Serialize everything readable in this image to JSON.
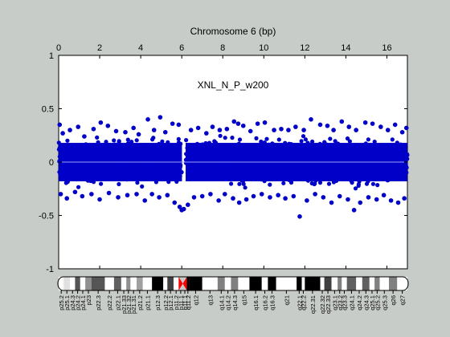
{
  "window_background": "#c8ccc8",
  "chart_data": {
    "type": "scatter",
    "title": "Chromosome 6 (bp)",
    "annotation": "XNL_N_P_w200",
    "xlim": [
      0,
      17
    ],
    "ylim": [
      -1,
      1
    ],
    "x_ticks": [
      0,
      2,
      4,
      6,
      8,
      10,
      12,
      14,
      16
    ],
    "y_ticks": [
      1,
      0.5,
      0,
      -0.5,
      -1
    ],
    "point_color": "#0000c8",
    "zero_line_color": "#a0a0ff",
    "grid": false,
    "bulk_band": {
      "x_range": [
        0,
        17
      ],
      "y_range": [
        -0.18,
        0.18
      ],
      "gap_at_x": 6.05,
      "note": "dense continuous band of points between about -0.18 and 0.18 except near the centromere"
    },
    "series": [
      {
        "x": [
          0.05,
          0.2,
          0.55,
          0.95,
          1.25,
          1.7,
          2.05,
          2.4,
          2.8,
          3.25,
          3.65,
          3.9,
          4.35,
          4.65,
          4.95,
          5.2,
          5.55,
          5.85,
          6.45,
          6.8,
          7.2,
          7.5,
          7.85,
          8.2,
          8.55,
          8.75,
          9.0,
          9.35,
          9.7,
          10.05,
          10.5,
          10.85,
          11.2,
          11.55,
          11.95,
          12.3,
          12.75,
          13.1,
          13.4,
          13.8,
          14.15,
          14.5,
          14.95,
          15.3,
          15.7,
          16.05,
          16.4,
          16.75,
          16.95
        ],
        "y": [
          0.35,
          0.27,
          0.3,
          0.33,
          0.24,
          0.31,
          0.37,
          0.34,
          0.29,
          0.28,
          0.32,
          0.26,
          0.4,
          0.3,
          0.42,
          0.28,
          0.36,
          0.35,
          0.3,
          0.32,
          0.27,
          0.33,
          0.3,
          0.31,
          0.38,
          0.36,
          0.34,
          0.29,
          0.36,
          0.37,
          0.3,
          0.31,
          0.3,
          0.33,
          0.3,
          0.4,
          0.35,
          0.34,
          0.3,
          0.38,
          0.33,
          0.3,
          0.37,
          0.36,
          0.33,
          0.3,
          0.35,
          0.28,
          0.32
        ]
      },
      {
        "x": [
          0.1,
          0.4,
          0.8,
          1.15,
          1.6,
          2.0,
          2.45,
          2.9,
          3.35,
          3.8,
          4.2,
          4.55,
          4.9,
          5.3,
          5.65,
          5.9,
          6.0,
          6.1,
          6.3,
          6.6,
          7.0,
          7.4,
          7.8,
          8.1,
          8.5,
          8.8,
          9.15,
          9.5,
          9.9,
          10.3,
          10.7,
          11.05,
          11.45,
          11.75,
          12.1,
          12.5,
          12.9,
          13.3,
          13.7,
          14.1,
          14.4,
          14.7,
          15.1,
          15.5,
          15.85,
          16.2,
          16.55,
          16.85
        ],
        "y": [
          -0.3,
          -0.34,
          -0.28,
          -0.32,
          -0.3,
          -0.35,
          -0.29,
          -0.33,
          -0.31,
          -0.3,
          -0.36,
          -0.3,
          -0.33,
          -0.31,
          -0.38,
          -0.42,
          -0.45,
          -0.44,
          -0.4,
          -0.33,
          -0.32,
          -0.3,
          -0.36,
          -0.3,
          -0.34,
          -0.38,
          -0.35,
          -0.32,
          -0.3,
          -0.33,
          -0.31,
          -0.34,
          -0.32,
          -0.51,
          -0.36,
          -0.3,
          -0.33,
          -0.38,
          -0.32,
          -0.35,
          -0.45,
          -0.38,
          -0.33,
          -0.35,
          -0.31,
          -0.36,
          -0.38,
          -0.34
        ]
      }
    ]
  },
  "ideogram": {
    "bands": [
      {
        "label": "p25.2",
        "end": 0.25,
        "color": "#ffffff"
      },
      {
        "label": "p25.1",
        "end": 0.55,
        "color": "#e0e0e0"
      },
      {
        "label": "p24.3",
        "end": 0.8,
        "color": "#ffffff"
      },
      {
        "label": "p24.2",
        "end": 1.05,
        "color": "#555555"
      },
      {
        "label": "p24.1",
        "end": 1.3,
        "color": "#ffffff"
      },
      {
        "label": "p23",
        "end": 1.6,
        "color": "#909090"
      },
      {
        "label": "p22.3",
        "end": 2.25,
        "color": "#555555"
      },
      {
        "label": "p22.2",
        "end": 2.7,
        "color": "#ffffff"
      },
      {
        "label": "p22.1",
        "end": 3.05,
        "color": "#606060"
      },
      {
        "label": "p21.33",
        "end": 3.3,
        "color": "#ffffff"
      },
      {
        "label": "p21.32",
        "end": 3.5,
        "color": "#909090"
      },
      {
        "label": "p21.31",
        "end": 3.8,
        "color": "#ffffff"
      },
      {
        "label": "p21.2",
        "end": 4.1,
        "color": "#a0a0a0"
      },
      {
        "label": "p21.1",
        "end": 4.55,
        "color": "#ffffff"
      },
      {
        "label": "p12.3",
        "end": 5.1,
        "color": "#000000"
      },
      {
        "label": "p12.2",
        "end": 5.3,
        "color": "#ffffff"
      },
      {
        "label": "p12.1",
        "end": 5.6,
        "color": "#404040"
      },
      {
        "label": "p11.2",
        "end": 5.85,
        "color": "#ffffff"
      },
      {
        "label": "p11.1",
        "end": 6.05,
        "color": "#ff0000"
      },
      {
        "label": "q11.1",
        "end": 6.25,
        "color": "#ff0000"
      },
      {
        "label": "q11.2",
        "end": 6.35,
        "color": "#000000"
      },
      {
        "label": "q12",
        "end": 7.0,
        "color": "#000000"
      },
      {
        "label": "q13",
        "end": 7.75,
        "color": "#ffffff"
      },
      {
        "label": "q14.1",
        "end": 8.1,
        "color": "#808080"
      },
      {
        "label": "q14.2",
        "end": 8.4,
        "color": "#ffffff"
      },
      {
        "label": "q14.3",
        "end": 8.75,
        "color": "#808080"
      },
      {
        "label": "q15",
        "end": 9.3,
        "color": "#ffffff"
      },
      {
        "label": "q16.1",
        "end": 9.9,
        "color": "#000000"
      },
      {
        "label": "q16.2",
        "end": 10.2,
        "color": "#ffffff"
      },
      {
        "label": "q16.3",
        "end": 10.6,
        "color": "#000000"
      },
      {
        "label": "q21",
        "end": 11.6,
        "color": "#ffffff"
      },
      {
        "label": "q22.1",
        "end": 11.85,
        "color": "#000000"
      },
      {
        "label": "q22.2",
        "end": 12.0,
        "color": "#ffffff"
      },
      {
        "label": "q22.31",
        "end": 12.75,
        "color": "#000000"
      },
      {
        "label": "q22.32",
        "end": 12.95,
        "color": "#ffffff"
      },
      {
        "label": "q22.33",
        "end": 13.3,
        "color": "#404040"
      },
      {
        "label": "q23.1",
        "end": 13.6,
        "color": "#ffffff"
      },
      {
        "label": "q23.2",
        "end": 13.8,
        "color": "#808080"
      },
      {
        "label": "q23.3",
        "end": 14.05,
        "color": "#ffffff"
      },
      {
        "label": "q24.1",
        "end": 14.5,
        "color": "#606060"
      },
      {
        "label": "q24.2",
        "end": 14.8,
        "color": "#ffffff"
      },
      {
        "label": "q24.3",
        "end": 15.15,
        "color": "#606060"
      },
      {
        "label": "q25.1",
        "end": 15.4,
        "color": "#ffffff"
      },
      {
        "label": "q25.2",
        "end": 15.65,
        "color": "#808080"
      },
      {
        "label": "q25.3",
        "end": 16.1,
        "color": "#ffffff"
      },
      {
        "label": "q26",
        "end": 16.5,
        "color": "#808080"
      },
      {
        "label": "q27",
        "end": 17.0,
        "color": "#ffffff"
      }
    ]
  }
}
